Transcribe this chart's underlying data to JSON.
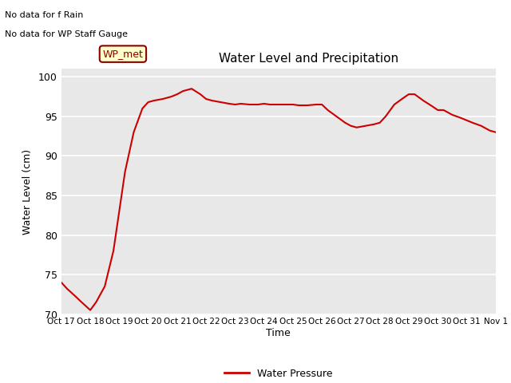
{
  "title": "Water Level and Precipitation",
  "xlabel": "Time",
  "ylabel": "Water Level (cm)",
  "ylim": [
    70,
    101
  ],
  "yticks": [
    70,
    75,
    80,
    85,
    90,
    95,
    100
  ],
  "annotation_text1": "No data for f Rain",
  "annotation_text2": "No data for WP Staff Gauge",
  "legend_label": "WP_met",
  "legend_label2": "Water Pressure",
  "line_color": "#cc0000",
  "background_color": "#e8e8e8",
  "fig_background": "#ffffff",
  "x_labels": [
    "Oct 17",
    "Oct 18",
    "Oct 19",
    "Oct 20",
    "Oct 21",
    "Oct 22",
    "Oct 23",
    "Oct 24",
    "Oct 25",
    "Oct 26",
    "Oct 27",
    "Oct 28",
    "Oct 29",
    "Oct 30",
    "Oct 31",
    "Nov 1"
  ],
  "x_values": [
    0,
    1,
    2,
    3,
    4,
    5,
    6,
    7,
    8,
    9,
    10,
    11,
    12,
    13,
    14,
    15
  ],
  "water_level_x": [
    0,
    0.2,
    0.5,
    0.7,
    0.85,
    1.0,
    1.2,
    1.5,
    1.8,
    2.0,
    2.2,
    2.5,
    2.8,
    3.0,
    3.2,
    3.5,
    3.8,
    4.0,
    4.2,
    4.5,
    4.8,
    5.0,
    5.2,
    5.5,
    5.8,
    6.0,
    6.2,
    6.5,
    6.8,
    7.0,
    7.2,
    7.5,
    7.8,
    8.0,
    8.2,
    8.5,
    8.8,
    9.0,
    9.2,
    9.5,
    9.8,
    10.0,
    10.2,
    10.5,
    10.8,
    11.0,
    11.2,
    11.5,
    11.8,
    12.0,
    12.2,
    12.5,
    12.8,
    13.0,
    13.2,
    13.5,
    13.8,
    14.0,
    14.2,
    14.5,
    14.8,
    15.0
  ],
  "water_level_y": [
    74.0,
    73.2,
    72.2,
    71.5,
    71.0,
    70.5,
    71.5,
    73.5,
    78.0,
    83.0,
    88.0,
    93.0,
    96.0,
    96.8,
    97.0,
    97.2,
    97.5,
    97.8,
    98.2,
    98.5,
    97.8,
    97.2,
    97.0,
    96.8,
    96.6,
    96.5,
    96.6,
    96.5,
    96.5,
    96.6,
    96.5,
    96.5,
    96.5,
    96.5,
    96.4,
    96.4,
    96.5,
    96.5,
    95.8,
    95.0,
    94.2,
    93.8,
    93.6,
    93.8,
    94.0,
    94.2,
    95.0,
    96.5,
    97.3,
    97.8,
    97.8,
    97.0,
    96.3,
    95.8,
    95.8,
    95.2,
    94.8,
    94.5,
    94.2,
    93.8,
    93.2,
    93.0
  ]
}
